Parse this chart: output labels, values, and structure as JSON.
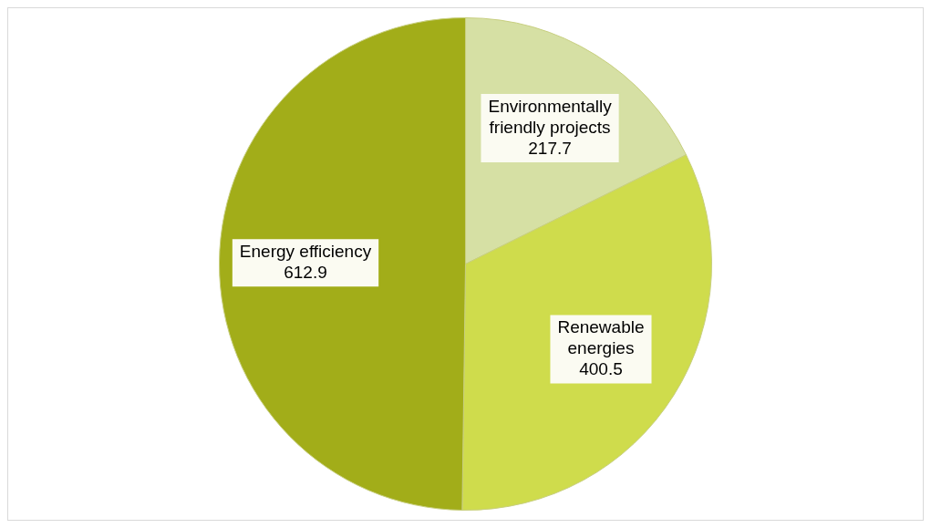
{
  "chart_data": {
    "type": "pie",
    "categories": [
      "Environmentally friendly projects",
      "Renewable energies",
      "Energy efficiency"
    ],
    "values": [
      217.7,
      400.5,
      612.9
    ],
    "colors": [
      "#d6e0a4",
      "#cfdc4c",
      "#a2ad19"
    ],
    "data_labels": true,
    "legend": false
  }
}
